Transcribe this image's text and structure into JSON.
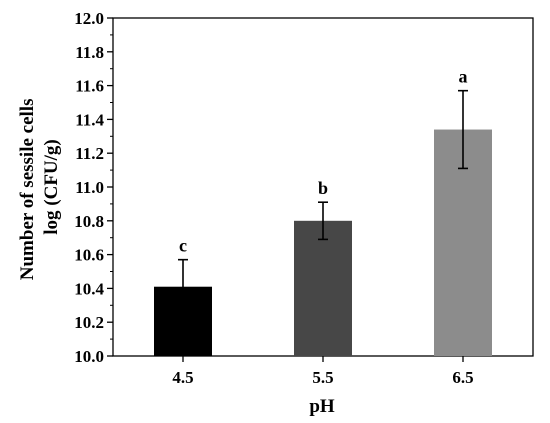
{
  "chart_data": {
    "type": "bar",
    "categories": [
      "4.5",
      "5.5",
      "6.5"
    ],
    "values": [
      10.41,
      10.8,
      11.34
    ],
    "errors": [
      0.16,
      0.11,
      0.23
    ],
    "significance_labels": [
      "c",
      "b",
      "a"
    ],
    "bar_colors": [
      "#000000",
      "#474747",
      "#8c8c8c"
    ],
    "xlabel": "pH",
    "ylabel_lines": [
      "Number of sessile cells",
      "log (CFU/g)"
    ],
    "ylim": [
      10.0,
      12.0
    ],
    "yticks": [
      "10.0",
      "10.2",
      "10.4",
      "10.6",
      "10.8",
      "11.0",
      "11.2",
      "11.4",
      "11.6",
      "11.8",
      "12.0"
    ],
    "grid": false,
    "legend": "none"
  }
}
